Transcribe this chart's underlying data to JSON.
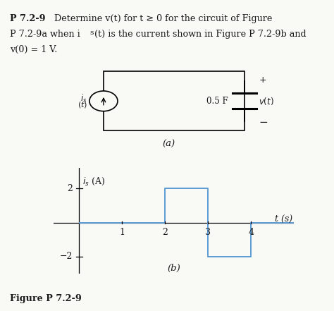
{
  "background_color": "#f9f9f6",
  "text_color": "#1a1a1a",
  "step_color": "#5b9bd5",
  "title_bold": "P 7.2-9",
  "title_rest_line1": " Determine v(t) for t ≥ 0 for the circuit of Figure",
  "title_line2": "P 7.2-9a when i",
  "title_line2b": "s",
  "title_line2c": "(t) is the current shown in Figure P 7.2-9b and",
  "title_line3": "v(0) = 1 V.",
  "fig_label": "Figure P 7.2-9",
  "subfig_a_label": "(a)",
  "subfig_b_label": "(b)",
  "graph_ytick_labels": [
    "-2",
    "2"
  ],
  "graph_ytick_vals": [
    -2,
    2
  ],
  "graph_xtick_labels": [
    "1",
    "2",
    "3"
  ],
  "graph_xtick_vals": [
    1,
    2,
    3
  ],
  "step_x": [
    0,
    2,
    2,
    3,
    3,
    4,
    4,
    5
  ],
  "step_y": [
    0,
    0,
    2,
    2,
    -2,
    -2,
    0,
    0
  ]
}
